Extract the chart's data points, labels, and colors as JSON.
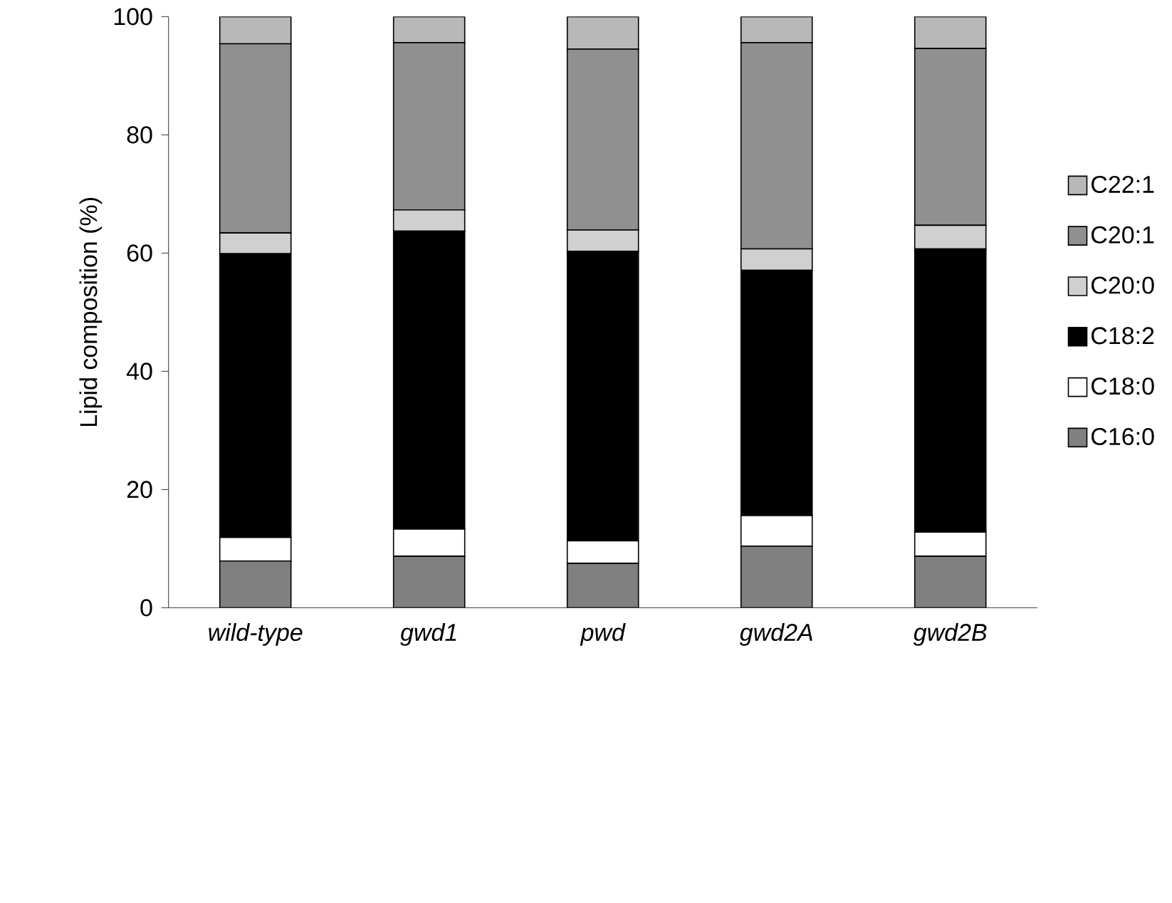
{
  "chart_data": {
    "type": "bar",
    "stacked": true,
    "ylabel": "Lipid composition (%)",
    "categories": [
      "wild-type",
      "gwd1",
      "pwd",
      "gwd2A",
      "gwd2B"
    ],
    "ylim": [
      0,
      100
    ],
    "yticks": [
      0,
      20,
      40,
      60,
      80,
      100
    ],
    "grid": false,
    "legend": "right",
    "series": [
      {
        "name": "C16:0",
        "color": "#808080",
        "values": [
          7.9,
          8.7,
          7.5,
          10.4,
          8.7
        ]
      },
      {
        "name": "C18:0",
        "color": "#ffffff",
        "values": [
          4.0,
          4.6,
          3.8,
          5.2,
          4.1
        ]
      },
      {
        "name": "C18:2",
        "color": "#000000",
        "values": [
          48.0,
          50.4,
          49.0,
          41.5,
          47.9
        ]
      },
      {
        "name": "C20:0",
        "color": "#d0d0d0",
        "values": [
          3.5,
          3.6,
          3.6,
          3.6,
          4.0
        ]
      },
      {
        "name": "C20:1",
        "color": "#909090",
        "values": [
          32.0,
          28.3,
          30.6,
          34.9,
          29.9
        ]
      },
      {
        "name": "C22:1",
        "color": "#b8b8b8",
        "values": [
          4.6,
          4.4,
          5.5,
          4.4,
          5.4
        ]
      }
    ]
  }
}
